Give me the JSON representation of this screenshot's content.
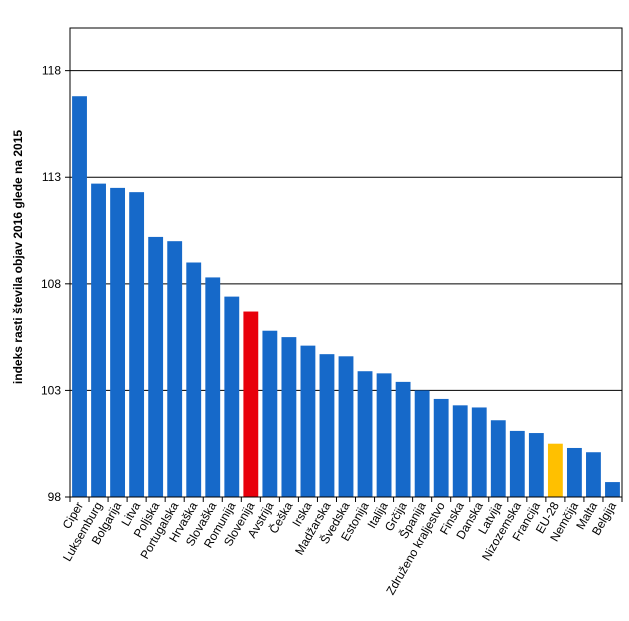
{
  "chart_data": {
    "type": "bar",
    "title": "",
    "xlabel": "",
    "ylabel": "indeks rasti števila objav 2016 glede na 2015",
    "ylim": [
      98,
      120
    ],
    "yticks": [
      98,
      103,
      108,
      113,
      118
    ],
    "grid": true,
    "categories": [
      "Ciper",
      "Luksemburg",
      "Bolgarija",
      "Litva",
      "Poljska",
      "Portugalska",
      "Hrvaška",
      "Slovaška",
      "Romunija",
      "Slovenija",
      "Avstrija",
      "Češka",
      "Irska",
      "Madžarska",
      "Švedska",
      "Estonija",
      "Italija",
      "Grčija",
      "Španija",
      "Združeno kraljestvo",
      "Finska",
      "Danska",
      "Latvija",
      "Nizozemska",
      "Francija",
      "EU-28",
      "Nemčija",
      "Malta",
      "Belgija"
    ],
    "values": [
      116.8,
      112.7,
      112.5,
      112.3,
      110.2,
      110.0,
      109.0,
      108.3,
      107.4,
      106.7,
      105.8,
      105.5,
      105.1,
      104.7,
      104.6,
      103.9,
      103.8,
      103.4,
      103.0,
      102.6,
      102.3,
      102.2,
      101.6,
      101.1,
      101.0,
      100.5,
      100.3,
      100.1,
      98.7
    ],
    "colors": {
      "default": "#1669C9",
      "Slovenija": "#E8000B",
      "EU-28": "#FFC000"
    }
  }
}
